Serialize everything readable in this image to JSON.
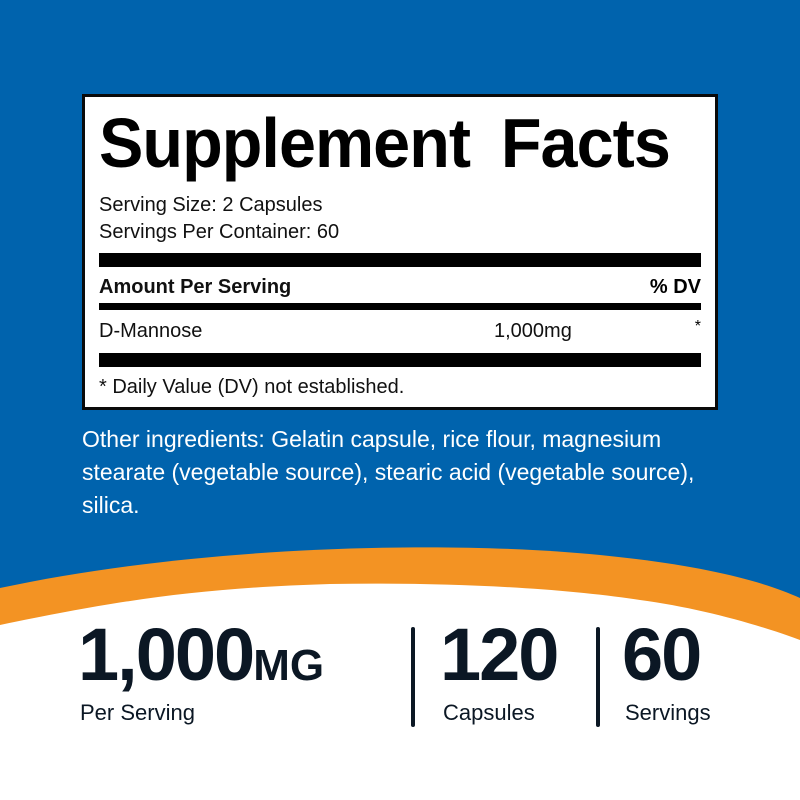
{
  "colors": {
    "background": "#0063ad",
    "accent": "#f39323",
    "text_dark": "#0b1724"
  },
  "facts": {
    "title": "Supplement Facts",
    "serving_size": "Serving Size: 2 Capsules",
    "servings_per_container": "Servings Per Container: 60",
    "amount_header": "Amount Per Serving",
    "dv_header": "% DV",
    "rows": [
      {
        "name": "D-Mannose",
        "amount": "1,000mg",
        "dv": "*"
      }
    ],
    "footnote": "* Daily Value (DV) not established."
  },
  "other_ingredients": "Other ingredients: Gelatin capsule, rice flour, magnesium stearate (vegetable source), stearic acid (vegetable source), silica.",
  "stats": [
    {
      "value": "1,000",
      "unit": "MG",
      "label": "Per Serving"
    },
    {
      "value": "120",
      "label": "Capsules"
    },
    {
      "value": "60",
      "label": "Servings"
    }
  ]
}
